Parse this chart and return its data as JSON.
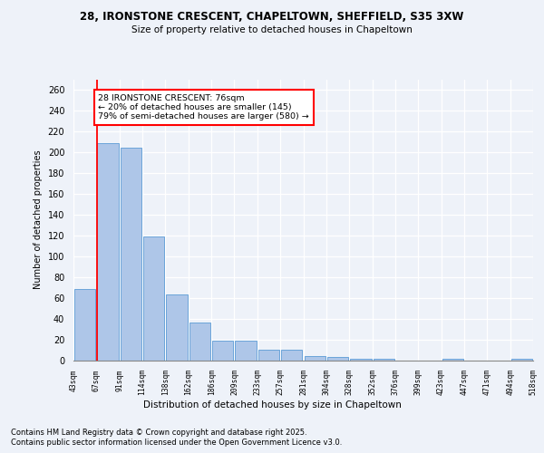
{
  "title_line1": "28, IRONSTONE CRESCENT, CHAPELTOWN, SHEFFIELD, S35 3XW",
  "title_line2": "Size of property relative to detached houses in Chapeltown",
  "xlabel": "Distribution of detached houses by size in Chapeltown",
  "ylabel": "Number of detached properties",
  "bar_values": [
    68,
    209,
    204,
    119,
    63,
    36,
    19,
    19,
    10,
    10,
    4,
    3,
    1,
    1,
    0,
    0,
    1,
    0,
    0,
    1
  ],
  "bar_labels": [
    "43sqm",
    "67sqm",
    "91sqm",
    "114sqm",
    "138sqm",
    "162sqm",
    "186sqm",
    "209sqm",
    "233sqm",
    "257sqm",
    "281sqm",
    "304sqm",
    "328sqm",
    "352sqm",
    "376sqm",
    "399sqm",
    "423sqm",
    "447sqm",
    "471sqm",
    "494sqm",
    "518sqm"
  ],
  "bar_color": "#aec6e8",
  "bar_edge_color": "#5b9bd5",
  "highlight_line_color": "red",
  "annotation_text": "28 IRONSTONE CRESCENT: 76sqm\n← 20% of detached houses are smaller (145)\n79% of semi-detached houses are larger (580) →",
  "ylim": [
    0,
    270
  ],
  "yticks": [
    0,
    20,
    40,
    60,
    80,
    100,
    120,
    140,
    160,
    180,
    200,
    220,
    240,
    260
  ],
  "footer_line1": "Contains HM Land Registry data © Crown copyright and database right 2025.",
  "footer_line2": "Contains public sector information licensed under the Open Government Licence v3.0.",
  "background_color": "#eef2f9",
  "grid_color": "#ffffff"
}
